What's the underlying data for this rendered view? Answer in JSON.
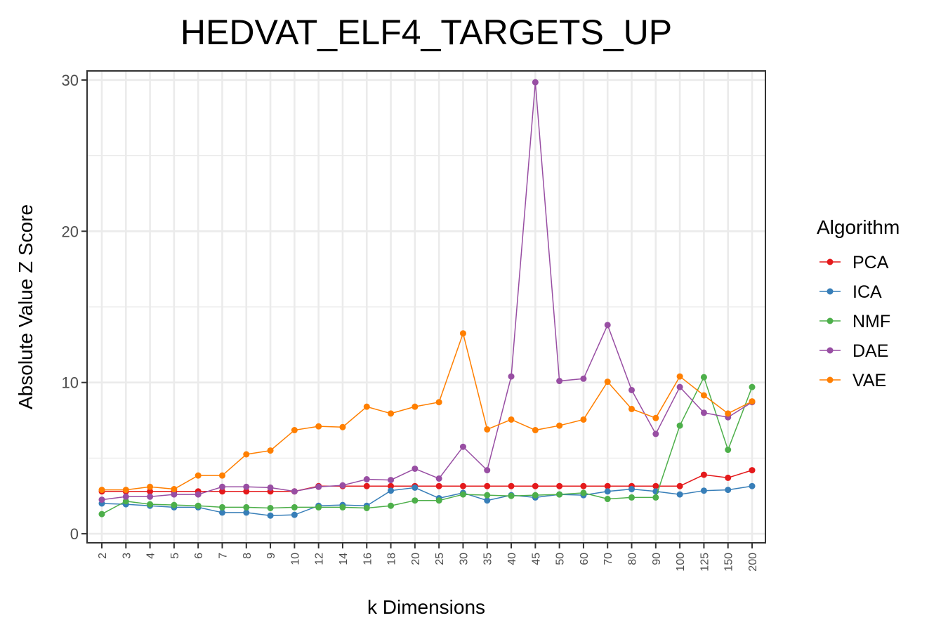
{
  "chart_data": {
    "type": "line",
    "title": "HEDVAT_ELF4_TARGETS_UP",
    "xlabel": "k Dimensions",
    "ylabel": "Absolute Value Z Score",
    "categories": [
      "2",
      "3",
      "4",
      "5",
      "6",
      "7",
      "8",
      "9",
      "10",
      "12",
      "14",
      "16",
      "18",
      "20",
      "25",
      "30",
      "35",
      "40",
      "45",
      "50",
      "60",
      "70",
      "80",
      "90",
      "100",
      "125",
      "150",
      "200"
    ],
    "ylim": [
      -0.6,
      30.6
    ],
    "yticks": [
      0,
      10,
      20,
      30
    ],
    "grid": true,
    "legend": {
      "title": "Algorithm",
      "position": "right"
    },
    "series": [
      {
        "name": "PCA",
        "color": "#E41A1C",
        "values": [
          2.8,
          2.8,
          2.8,
          2.8,
          2.8,
          2.8,
          2.8,
          2.8,
          2.8,
          3.15,
          3.15,
          3.15,
          3.15,
          3.15,
          3.15,
          3.15,
          3.15,
          3.15,
          3.15,
          3.15,
          3.15,
          3.15,
          3.15,
          3.15,
          3.15,
          3.9,
          3.7,
          4.2
        ]
      },
      {
        "name": "ICA",
        "color": "#377EB8",
        "values": [
          2.0,
          1.95,
          1.85,
          1.75,
          1.75,
          1.4,
          1.4,
          1.2,
          1.25,
          1.85,
          1.9,
          1.85,
          2.85,
          3.05,
          2.35,
          2.7,
          2.2,
          2.55,
          2.4,
          2.6,
          2.55,
          2.8,
          2.95,
          2.8,
          2.6,
          2.85,
          2.9,
          3.15
        ]
      },
      {
        "name": "NMF",
        "color": "#4DAF4A",
        "values": [
          1.3,
          2.15,
          1.95,
          1.9,
          1.85,
          1.75,
          1.75,
          1.7,
          1.75,
          1.75,
          1.75,
          1.7,
          1.85,
          2.2,
          2.2,
          2.6,
          2.55,
          2.5,
          2.55,
          2.6,
          2.7,
          2.3,
          2.4,
          2.4,
          7.15,
          10.35,
          5.55,
          9.7
        ]
      },
      {
        "name": "DAE",
        "color": "#984EA3",
        "values": [
          2.25,
          2.45,
          2.45,
          2.6,
          2.6,
          3.1,
          3.1,
          3.05,
          2.8,
          3.1,
          3.2,
          3.6,
          3.55,
          4.3,
          3.65,
          5.75,
          4.2,
          10.4,
          29.85,
          10.1,
          10.25,
          13.8,
          9.5,
          6.6,
          9.7,
          8.0,
          7.7,
          8.7
        ]
      },
      {
        "name": "VAE",
        "color": "#FF7F00",
        "values": [
          2.9,
          2.9,
          3.1,
          2.95,
          3.85,
          3.85,
          5.25,
          5.5,
          6.85,
          7.1,
          7.05,
          8.4,
          7.95,
          8.4,
          8.7,
          13.25,
          6.9,
          7.55,
          6.85,
          7.15,
          7.55,
          10.05,
          8.25,
          7.65,
          10.4,
          9.15,
          7.95,
          8.75
        ]
      }
    ]
  }
}
